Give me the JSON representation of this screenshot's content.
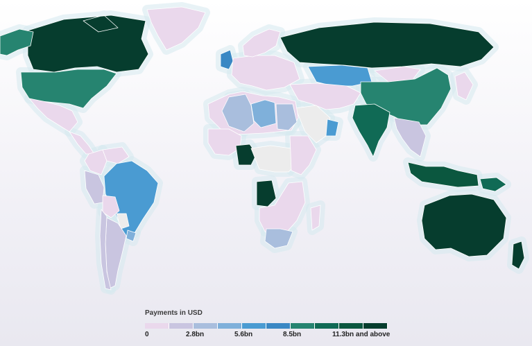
{
  "legend": {
    "title": "Payments in USD",
    "ticks": [
      "0",
      "2.8bn",
      "5.6bn",
      "8.5bn",
      "11.3bn and above"
    ],
    "bins": [
      "#ead8ec",
      "#c9c5e0",
      "#a9bedd",
      "#7fb0da",
      "#4a9bd2",
      "#3a88c4",
      "#268470",
      "#106a55",
      "#0b573f",
      "#063d2e"
    ]
  },
  "map": {
    "no_data_color": "#ececec",
    "regions": [
      {
        "name": "Canada",
        "level": 9
      },
      {
        "name": "Alaska",
        "level": 6
      },
      {
        "name": "Greenland",
        "level": 0
      },
      {
        "name": "United States",
        "level": 6
      },
      {
        "name": "Mexico",
        "level": 0
      },
      {
        "name": "Central America",
        "level": 0
      },
      {
        "name": "Colombia",
        "level": 0
      },
      {
        "name": "Venezuela",
        "level": 0
      },
      {
        "name": "Peru",
        "level": 1
      },
      {
        "name": "Brazil",
        "level": 4
      },
      {
        "name": "Bolivia",
        "level": 0
      },
      {
        "name": "Paraguay",
        "level": -1
      },
      {
        "name": "Argentina",
        "level": 1
      },
      {
        "name": "Chile",
        "level": 1
      },
      {
        "name": "Uruguay",
        "level": 3
      },
      {
        "name": "United Kingdom",
        "level": 5
      },
      {
        "name": "Europe",
        "level": 0
      },
      {
        "name": "Scandinavia",
        "level": 0
      },
      {
        "name": "Russia",
        "level": 9
      },
      {
        "name": "Kazakhstan",
        "level": 4
      },
      {
        "name": "Mongolia",
        "level": 0
      },
      {
        "name": "China",
        "level": 6
      },
      {
        "name": "Middle East",
        "level": 0
      },
      {
        "name": "Saudi Arabia",
        "level": -1
      },
      {
        "name": "Oman",
        "level": 4
      },
      {
        "name": "India",
        "level": 7
      },
      {
        "name": "Southeast Asia",
        "level": 1
      },
      {
        "name": "Indonesia",
        "level": 8
      },
      {
        "name": "Papua New Guinea",
        "level": 7
      },
      {
        "name": "Australia",
        "level": 9
      },
      {
        "name": "New Zealand",
        "level": 9
      },
      {
        "name": "Japan",
        "level": 0
      },
      {
        "name": "North Africa",
        "level": 0
      },
      {
        "name": "Algeria",
        "level": 2
      },
      {
        "name": "Libya",
        "level": 3
      },
      {
        "name": "Egypt",
        "level": 2
      },
      {
        "name": "West Africa",
        "level": 0
      },
      {
        "name": "Nigeria",
        "level": 9
      },
      {
        "name": "Central Africa",
        "level": -1
      },
      {
        "name": "East Africa",
        "level": 0
      },
      {
        "name": "Angola",
        "level": 9
      },
      {
        "name": "Southern Africa",
        "level": 0
      },
      {
        "name": "South Africa",
        "level": 2
      },
      {
        "name": "Madagascar",
        "level": 0
      }
    ]
  }
}
